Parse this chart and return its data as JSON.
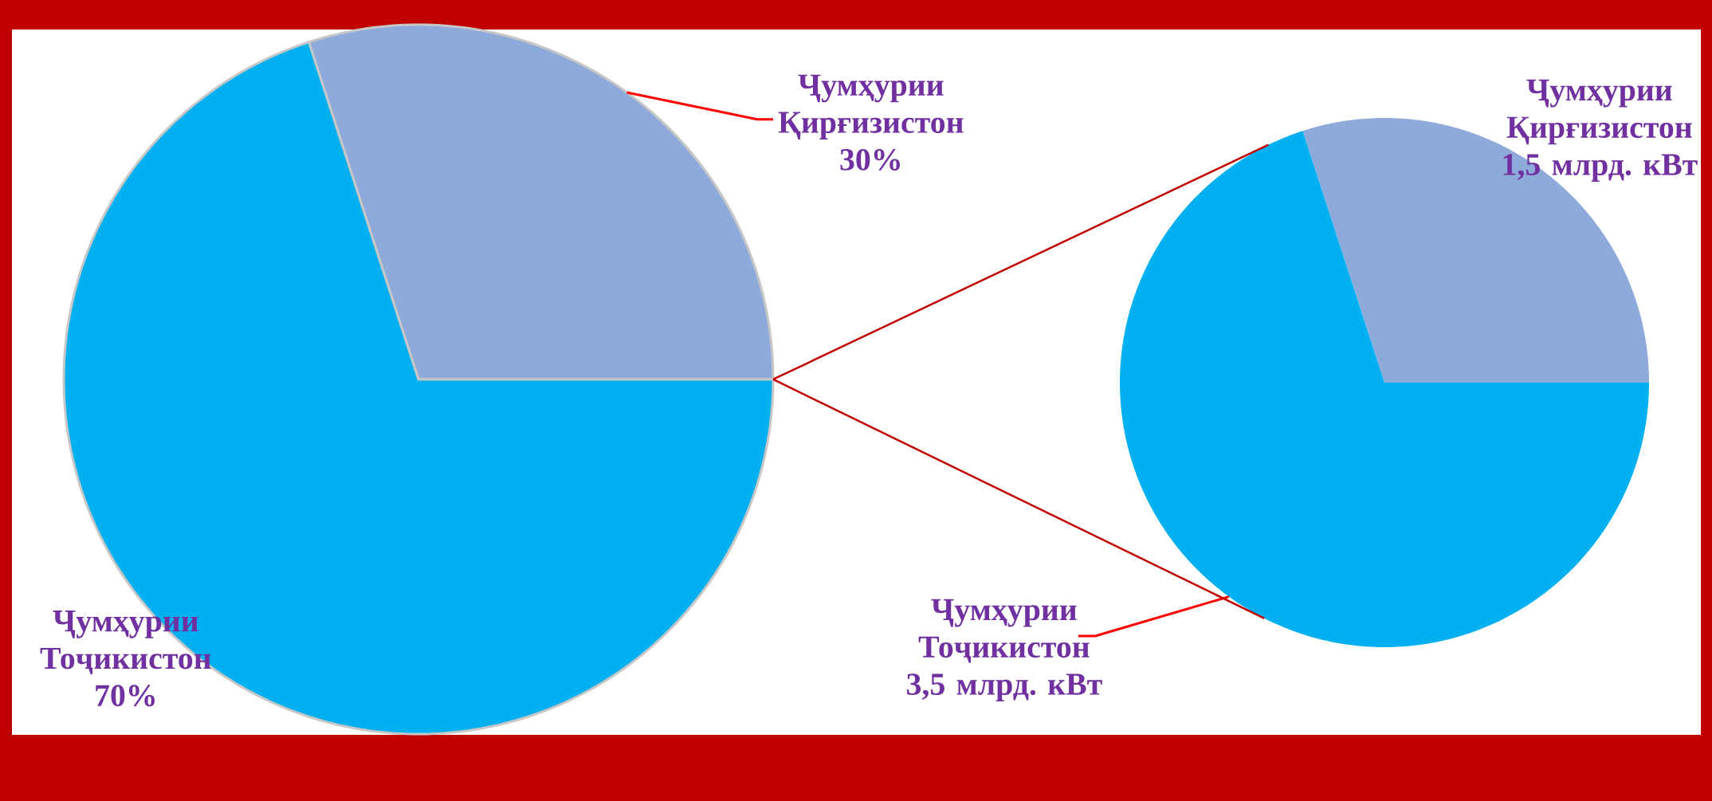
{
  "chart_data": [
    {
      "type": "pie",
      "categories": [
        "Ҷумҳурии Қирғизистон",
        "Ҷумҳурии Тоҷикистон"
      ],
      "values": [
        30,
        70
      ],
      "value_labels": [
        "30%",
        "70%"
      ],
      "colors": [
        "#8eaadb",
        "#00b0f0"
      ]
    },
    {
      "type": "pie",
      "categories": [
        "Ҷумҳурии Қирғизистон",
        "Ҷумҳурии Тоҷикистон"
      ],
      "values": [
        1.5,
        3.5
      ],
      "value_labels": [
        "1,5 млрд. кВт",
        "3,5 млрд. кВт"
      ],
      "colors": [
        "#8eaadb",
        "#00b0f0"
      ]
    }
  ]
}
